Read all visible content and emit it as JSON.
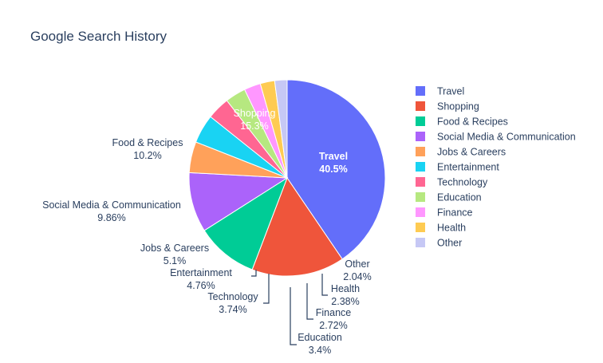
{
  "chart_data": {
    "type": "pie",
    "title": "Google Search History",
    "slices": [
      {
        "label": "Travel",
        "value": 40.5,
        "text": "40.5%",
        "color": "#636efa"
      },
      {
        "label": "Shopping",
        "value": 15.3,
        "text": "15.3%",
        "color": "#ef553b"
      },
      {
        "label": "Food & Recipes",
        "value": 10.2,
        "text": "10.2%",
        "color": "#00cc96"
      },
      {
        "label": "Social Media & Communication",
        "value": 9.86,
        "text": "9.86%",
        "color": "#ab63fa"
      },
      {
        "label": "Jobs & Careers",
        "value": 5.1,
        "text": "5.1%",
        "color": "#ffa15a"
      },
      {
        "label": "Entertainment",
        "value": 4.76,
        "text": "4.76%",
        "color": "#19d3f3"
      },
      {
        "label": "Technology",
        "value": 3.74,
        "text": "3.74%",
        "color": "#ff6692"
      },
      {
        "label": "Education",
        "value": 3.4,
        "text": "3.4%",
        "color": "#b6e880"
      },
      {
        "label": "Finance",
        "value": 2.72,
        "text": "2.72%",
        "color": "#ff97ff"
      },
      {
        "label": "Health",
        "value": 2.38,
        "text": "2.38%",
        "color": "#fecb52"
      },
      {
        "label": "Other",
        "value": 2.04,
        "text": "2.04%",
        "color": "#c6c8f5"
      }
    ],
    "legend_position": "right",
    "sort": "descending",
    "direction": "clockwise"
  }
}
